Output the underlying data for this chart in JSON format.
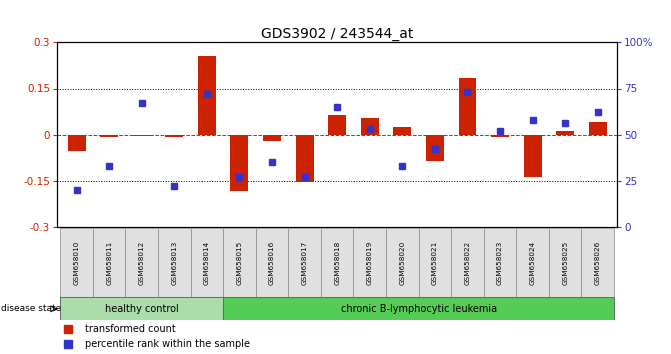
{
  "title": "GDS3902 / 243544_at",
  "samples": [
    "GSM658010",
    "GSM658011",
    "GSM658012",
    "GSM658013",
    "GSM658014",
    "GSM658015",
    "GSM658016",
    "GSM658017",
    "GSM658018",
    "GSM658019",
    "GSM658020",
    "GSM658021",
    "GSM658022",
    "GSM658023",
    "GSM658024",
    "GSM658025",
    "GSM658026"
  ],
  "transformed_count": [
    -0.055,
    -0.008,
    -0.005,
    -0.008,
    0.255,
    -0.185,
    -0.02,
    -0.155,
    0.065,
    0.055,
    0.025,
    -0.085,
    0.185,
    -0.008,
    -0.14,
    0.01,
    0.04
  ],
  "percentile_rank": [
    20,
    33,
    67,
    22,
    72,
    27,
    35,
    27,
    65,
    53,
    33,
    42,
    73,
    52,
    58,
    56,
    62
  ],
  "group_labels": [
    "healthy control",
    "chronic B-lymphocytic leukemia"
  ],
  "group_split": 5,
  "bar_color": "#cc2200",
  "dot_color": "#3333cc",
  "bg_color": "#ffffff",
  "ylim_left": [
    -0.3,
    0.3
  ],
  "ylim_right": [
    0,
    100
  ],
  "yticks_left": [
    -0.3,
    -0.15,
    0,
    0.15,
    0.3
  ],
  "yticks_right": [
    0,
    25,
    50,
    75,
    100
  ],
  "healthy_color": "#aaddaa",
  "leukemia_color": "#55cc55",
  "legend_bar_label": "transformed count",
  "legend_dot_label": "percentile rank within the sample",
  "bar_width": 0.55
}
